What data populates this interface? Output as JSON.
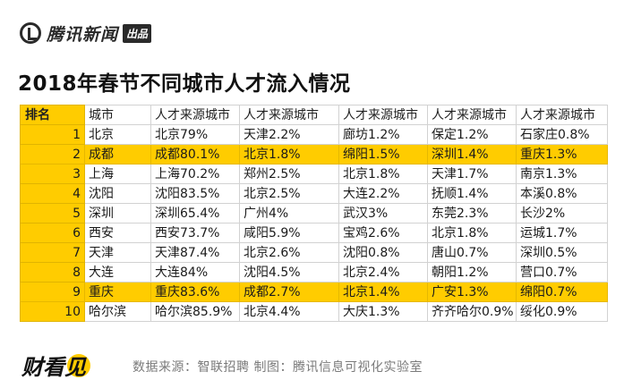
{
  "brand": {
    "name": "腾讯新闻",
    "tag": "出品"
  },
  "title": "2018年春节不同城市人才流入情况",
  "table": {
    "headers": [
      "排名",
      "城市",
      "人才来源城市",
      "人才来源城市",
      "人才来源城市",
      "人才来源城市",
      "人才来源城市"
    ],
    "rows": [
      {
        "rank": "1",
        "city": "北京",
        "sources": [
          "北京79%",
          "天津2.2%",
          "廊坊1.2%",
          "保定1.2%",
          "石家庄0.8%"
        ],
        "highlight": false
      },
      {
        "rank": "2",
        "city": "成都",
        "sources": [
          "成都80.1%",
          "北京1.8%",
          "绵阳1.5%",
          "深圳1.4%",
          "重庆1.3%"
        ],
        "highlight": true
      },
      {
        "rank": "3",
        "city": "上海",
        "sources": [
          "上海70.2%",
          "郑州2.5%",
          "北京1.8%",
          "天津1.7%",
          "南京1.3%"
        ],
        "highlight": false
      },
      {
        "rank": "4",
        "city": "沈阳",
        "sources": [
          "沈阳83.5%",
          "北京2.5%",
          "大连2.2%",
          "抚顺1.4%",
          "本溪0.8%"
        ],
        "highlight": false
      },
      {
        "rank": "5",
        "city": "深圳",
        "sources": [
          "深圳65.4%",
          "广州4%",
          "武汉3%",
          "东莞2.3%",
          "长沙2%"
        ],
        "highlight": false
      },
      {
        "rank": "6",
        "city": "西安",
        "sources": [
          "西安73.7%",
          "咸阳5.9%",
          "宝鸡2.6%",
          "北京1.8%",
          "运城1.7%"
        ],
        "highlight": false
      },
      {
        "rank": "7",
        "city": "天津",
        "sources": [
          "天津87.4%",
          "北京2.6%",
          "沈阳0.8%",
          "唐山0.7%",
          "深圳0.5%"
        ],
        "highlight": false
      },
      {
        "rank": "8",
        "city": "大连",
        "sources": [
          "大连84%",
          "沈阳4.5%",
          "北京2.4%",
          "朝阳1.2%",
          "营口0.7%"
        ],
        "highlight": false
      },
      {
        "rank": "9",
        "city": "重庆",
        "sources": [
          "重庆83.6%",
          "成都2.7%",
          "北京1.4%",
          "广安1.3%",
          "绵阳0.7%"
        ],
        "highlight": true
      },
      {
        "rank": "10",
        "city": "哈尔滨",
        "sources": [
          "哈尔滨85.9%",
          "北京4.4%",
          "大庆1.3%",
          "齐齐哈尔0.9%",
          "绥化0.9%"
        ],
        "highlight": false
      }
    ]
  },
  "footer": {
    "logo_text": "财看见",
    "source": "数据来源：智联招聘    制图：腾讯信息可视化实验室"
  },
  "colors": {
    "highlight": "#ffcc00",
    "grid": "#d2d2d2",
    "source_text": "#7a7a7a"
  }
}
